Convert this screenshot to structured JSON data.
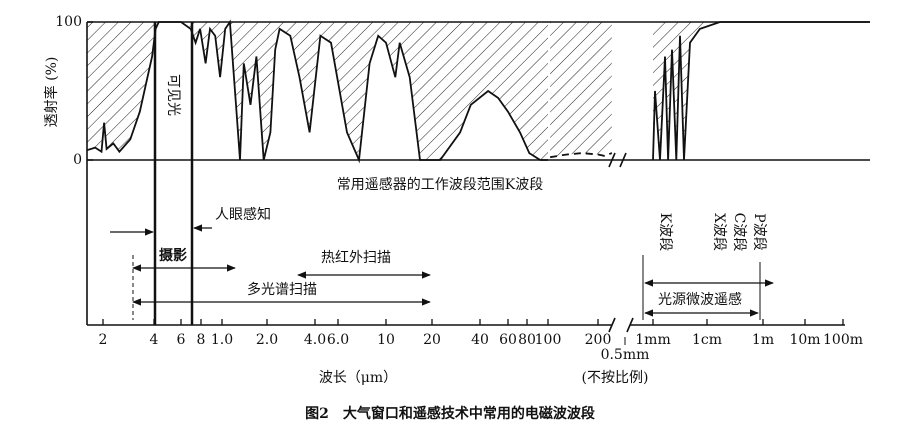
{
  "chart_data": {
    "type": "line",
    "ylabel": "透射率 (%)",
    "xlabel": "波长（μm）",
    "caption": "图2　大气窗口和遥感技术中常用的电磁波波段",
    "ylim": [
      0,
      100
    ],
    "yticks": [
      0,
      100
    ],
    "xscale": "log",
    "xticks": [
      {
        "value": 0.2,
        "label": "2"
      },
      {
        "value": 0.4,
        "label": "4"
      },
      {
        "value": 0.6,
        "label": "6"
      },
      {
        "value": 0.8,
        "label": "8"
      },
      {
        "value": 1,
        "label": "1.0"
      },
      {
        "value": 2,
        "label": "2.0"
      },
      {
        "value": 4,
        "label": "4.0"
      },
      {
        "value": 6,
        "label": "6.0"
      },
      10,
      20,
      40,
      60,
      80,
      100,
      200,
      {
        "value": 500,
        "label": "0.5mm"
      },
      {
        "value": 1000,
        "label": "1mm"
      },
      {
        "value": 10000,
        "label": "1cm"
      },
      {
        "value": 1000000,
        "label": "1m"
      },
      {
        "value": 10000000,
        "label": "10m"
      },
      {
        "value": 100000000,
        "label": "100m"
      }
    ],
    "hatch": true,
    "series": [
      {
        "color": "#111111",
        "dashed": false,
        "x": [
          0.16,
          0.18,
          0.196,
          0.203,
          0.21,
          0.23,
          0.25,
          0.29,
          0.33,
          0.39,
          0.41,
          0.43,
          0.5,
          0.6,
          0.69,
          0.74,
          0.79,
          0.84,
          0.88,
          0.93,
          0.98,
          1.05,
          1.13,
          1.24,
          1.32,
          1.4,
          1.55,
          1.7,
          1.9,
          2.1,
          2.25,
          2.4,
          2.8,
          3.2,
          3.7,
          4.4,
          5.3,
          6.6,
          7.5,
          8.4,
          9.2,
          10,
          11.5,
          12.3,
          14.3,
          16.7,
          22.5,
          30,
          35,
          45,
          52,
          60,
          72,
          82,
          92,
          100
        ],
        "values": [
          7,
          9,
          6,
          27,
          8,
          12,
          6,
          15,
          35,
          75,
          95,
          100,
          100,
          100,
          95,
          85,
          95,
          70,
          95,
          90,
          60,
          95,
          100,
          40,
          0,
          70,
          40,
          75,
          0,
          20,
          80,
          95,
          90,
          60,
          20,
          90,
          85,
          20,
          0,
          70,
          90,
          85,
          60,
          85,
          60,
          0,
          0,
          20,
          40,
          50,
          45,
          35,
          20,
          5,
          0,
          0
        ]
      },
      {
        "color": "#111111",
        "dashed": true,
        "x": [
          103,
          130,
          160,
          200,
          250,
          320
        ],
        "values": [
          2,
          4,
          5,
          4,
          3,
          5
        ]
      },
      {
        "color": "#111111",
        "dashed": false,
        "x": [
          1000,
          1090,
          1350,
          1670,
          1900,
          2250,
          2700,
          3160,
          3750,
          4840,
          7400,
          29000,
          150000,
          1000000,
          10000000,
          100000000,
          510000000
        ],
        "values": [
          0,
          50,
          0,
          75,
          0,
          80,
          0,
          90,
          0,
          85,
          95,
          100,
          100,
          100,
          100,
          100,
          100
        ]
      }
    ],
    "annotations": {
      "visible": "可见光",
      "sensor_range": "常用遥感器的工作波段范围K波段",
      "eye": "人眼感知",
      "photo": "摄影",
      "thermal": "热红外扫描",
      "multispectral": "多光谱扫描",
      "k_band": "K波段",
      "x_band": "X波段",
      "c_band": "C波段",
      "p_band": "P波段",
      "microwave": "光源微波遥感",
      "not_to_scale": "(不按比例)"
    }
  }
}
